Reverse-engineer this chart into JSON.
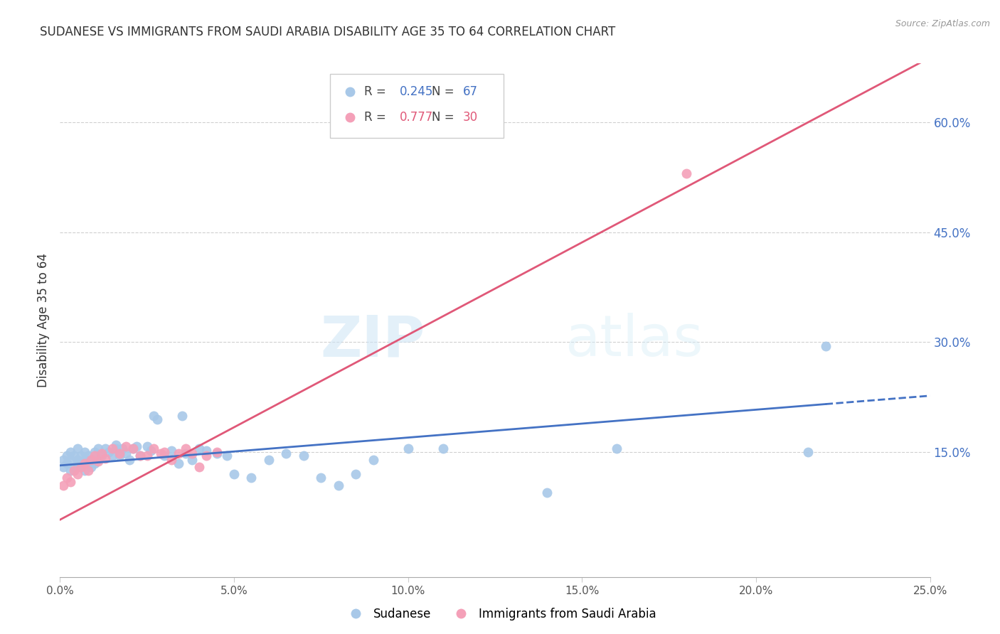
{
  "title": "SUDANESE VS IMMIGRANTS FROM SAUDI ARABIA DISABILITY AGE 35 TO 64 CORRELATION CHART",
  "source": "Source: ZipAtlas.com",
  "ylabel": "Disability Age 35 to 64",
  "xlim": [
    0.0,
    0.25
  ],
  "ylim": [
    -0.02,
    0.68
  ],
  "yticks": [
    0.15,
    0.3,
    0.45,
    0.6
  ],
  "ytick_labels": [
    "15.0%",
    "30.0%",
    "45.0%",
    "60.0%"
  ],
  "xticks": [
    0.0,
    0.05,
    0.1,
    0.15,
    0.2,
    0.25
  ],
  "xtick_labels": [
    "0.0%",
    "5.0%",
    "10.0%",
    "15.0%",
    "20.0%",
    "25.0%"
  ],
  "gridline_color": "#d0d0d0",
  "background_color": "#ffffff",
  "sudanese_color": "#a8c8e8",
  "saudi_color": "#f4a0b8",
  "blue_line_color": "#4472c4",
  "pink_line_color": "#e05878",
  "legend_r_blue": "0.245",
  "legend_n_blue": "67",
  "legend_r_pink": "0.777",
  "legend_n_pink": "30",
  "sudanese_label": "Sudanese",
  "saudi_label": "Immigrants from Saudi Arabia",
  "watermark_zip": "ZIP",
  "watermark_atlas": "atlas",
  "sudanese_x": [
    0.001,
    0.001,
    0.002,
    0.002,
    0.003,
    0.003,
    0.003,
    0.004,
    0.004,
    0.005,
    0.005,
    0.005,
    0.006,
    0.006,
    0.007,
    0.007,
    0.007,
    0.008,
    0.008,
    0.009,
    0.009,
    0.01,
    0.01,
    0.011,
    0.011,
    0.012,
    0.013,
    0.014,
    0.015,
    0.016,
    0.016,
    0.017,
    0.018,
    0.019,
    0.02,
    0.021,
    0.022,
    0.023,
    0.025,
    0.026,
    0.027,
    0.028,
    0.03,
    0.032,
    0.034,
    0.035,
    0.036,
    0.038,
    0.04,
    0.042,
    0.045,
    0.048,
    0.05,
    0.055,
    0.06,
    0.065,
    0.07,
    0.075,
    0.08,
    0.085,
    0.09,
    0.1,
    0.11,
    0.14,
    0.16,
    0.215,
    0.22
  ],
  "sudanese_y": [
    0.13,
    0.14,
    0.135,
    0.145,
    0.125,
    0.14,
    0.15,
    0.13,
    0.145,
    0.135,
    0.14,
    0.155,
    0.13,
    0.145,
    0.125,
    0.14,
    0.15,
    0.135,
    0.145,
    0.13,
    0.14,
    0.135,
    0.15,
    0.14,
    0.155,
    0.145,
    0.155,
    0.15,
    0.145,
    0.155,
    0.16,
    0.145,
    0.155,
    0.148,
    0.14,
    0.155,
    0.158,
    0.145,
    0.158,
    0.152,
    0.2,
    0.195,
    0.145,
    0.152,
    0.135,
    0.2,
    0.148,
    0.14,
    0.155,
    0.152,
    0.148,
    0.145,
    0.12,
    0.115,
    0.14,
    0.148,
    0.145,
    0.115,
    0.105,
    0.12,
    0.14,
    0.155,
    0.155,
    0.095,
    0.155,
    0.15,
    0.295
  ],
  "saudi_x": [
    0.001,
    0.002,
    0.003,
    0.004,
    0.005,
    0.006,
    0.007,
    0.008,
    0.009,
    0.01,
    0.011,
    0.012,
    0.013,
    0.015,
    0.017,
    0.019,
    0.021,
    0.023,
    0.025,
    0.027,
    0.029,
    0.03,
    0.032,
    0.034,
    0.036,
    0.038,
    0.04,
    0.042,
    0.045,
    0.18
  ],
  "saudi_y": [
    0.105,
    0.115,
    0.11,
    0.125,
    0.12,
    0.13,
    0.135,
    0.125,
    0.14,
    0.145,
    0.138,
    0.148,
    0.142,
    0.155,
    0.148,
    0.158,
    0.155,
    0.145,
    0.145,
    0.155,
    0.148,
    0.15,
    0.14,
    0.148,
    0.155,
    0.148,
    0.13,
    0.145,
    0.15,
    0.53
  ],
  "blue_line_intercept": 0.132,
  "blue_line_slope": 0.38,
  "pink_line_intercept": 0.058,
  "pink_line_slope": 2.52
}
